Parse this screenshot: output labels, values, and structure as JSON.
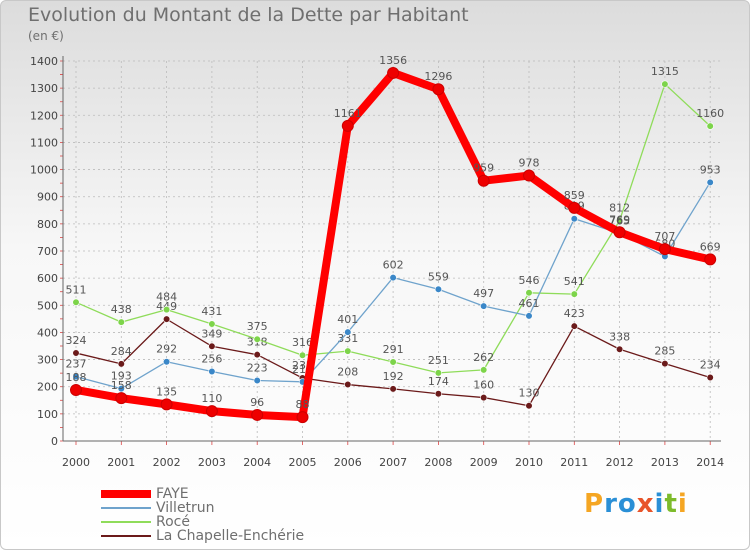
{
  "title": "Evolution du Montant de la Dette par Habitant",
  "unit": "(en €)",
  "logo": {
    "text": "Proxiti",
    "letters": [
      {
        "ch": "P",
        "color": "#f5a623"
      },
      {
        "ch": "r",
        "color": "#2a8fd6"
      },
      {
        "ch": "o",
        "color": "#2a8fd6"
      },
      {
        "ch": "x",
        "color": "#e8542a"
      },
      {
        "ch": "i",
        "color": "#2a8fd6"
      },
      {
        "ch": "t",
        "color": "#7dbb2b"
      },
      {
        "ch": "i",
        "color": "#f5a623"
      }
    ]
  },
  "chart_data": {
    "type": "line",
    "title": "Evolution du Montant de la Dette par Habitant",
    "subtitle": "(en €)",
    "x": [
      2000,
      2001,
      2002,
      2003,
      2004,
      2005,
      2006,
      2007,
      2008,
      2009,
      2010,
      2011,
      2012,
      2013,
      2014
    ],
    "ylim": [
      0,
      1400
    ],
    "yticks": [
      0,
      100,
      200,
      300,
      400,
      500,
      600,
      700,
      800,
      900,
      1000,
      1100,
      1200,
      1300,
      1400
    ],
    "grid": true,
    "legend_position": "bottom-left",
    "series": [
      {
        "name": "La Chapelle-Enchérie",
        "color": "#6b1a1a",
        "marker": "#6b1a1a",
        "thick": false,
        "values": [
          324,
          284,
          449,
          349,
          318,
          232,
          208,
          192,
          174,
          160,
          130,
          423,
          338,
          285,
          234
        ]
      },
      {
        "name": "Rocé",
        "color": "#8fdc5a",
        "marker": "#7dd44a",
        "thick": false,
        "values": [
          511,
          438,
          484,
          431,
          375,
          316,
          331,
          291,
          251,
          262,
          546,
          541,
          812,
          1315,
          1160
        ]
      },
      {
        "name": "Villetrun",
        "color": "#6fa3cc",
        "marker": "#3a87c8",
        "thick": false,
        "values": [
          237,
          193,
          292,
          256,
          223,
          218,
          401,
          602,
          559,
          497,
          461,
          819,
          765,
          680,
          953
        ]
      },
      {
        "name": "FAYE",
        "color": "#ff0000",
        "marker": "#ee0000",
        "thick": true,
        "values": [
          188,
          158,
          135,
          110,
          96,
          88,
          1161,
          1356,
          1296,
          959,
          978,
          859,
          769,
          707,
          669
        ]
      }
    ]
  }
}
